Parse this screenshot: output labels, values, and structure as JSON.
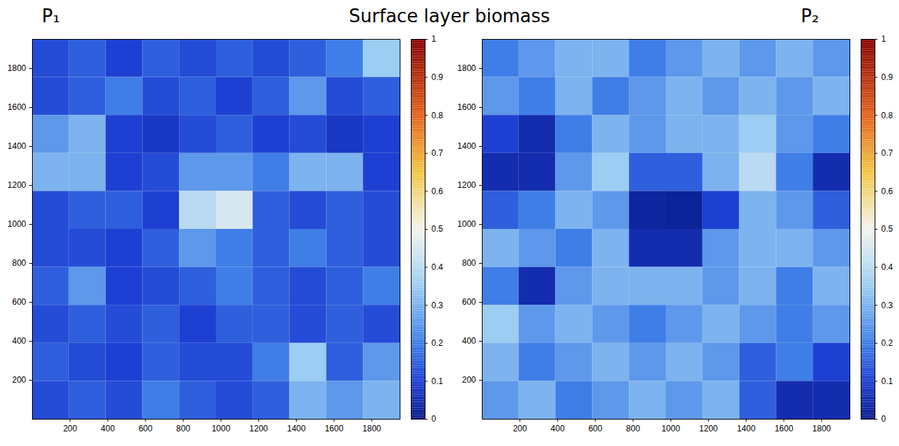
{
  "title": "Surface layer biomass",
  "chart_data": [
    {
      "type": "heatmap",
      "title": "P₁",
      "xlim": [
        0,
        1950
      ],
      "ylim": [
        0,
        1950
      ],
      "xticks": [
        200,
        400,
        600,
        800,
        1000,
        1200,
        1400,
        1600,
        1800
      ],
      "yticks": [
        200,
        400,
        600,
        800,
        1000,
        1200,
        1400,
        1600,
        1800
      ],
      "x_edges": [
        0,
        195,
        390,
        585,
        780,
        975,
        1170,
        1365,
        1560,
        1755,
        1950
      ],
      "y_edges": [
        1950,
        1755,
        1560,
        1365,
        1170,
        975,
        780,
        585,
        390,
        195,
        0
      ],
      "cells": [
        [
          0.12,
          0.15,
          0.1,
          0.15,
          0.12,
          0.15,
          0.12,
          0.15,
          0.2,
          0.35
        ],
        [
          0.12,
          0.15,
          0.2,
          0.12,
          0.15,
          0.1,
          0.15,
          0.25,
          0.12,
          0.15
        ],
        [
          0.25,
          0.3,
          0.1,
          0.08,
          0.12,
          0.15,
          0.1,
          0.12,
          0.08,
          0.1
        ],
        [
          0.3,
          0.3,
          0.1,
          0.12,
          0.25,
          0.25,
          0.2,
          0.3,
          0.3,
          0.1
        ],
        [
          0.12,
          0.15,
          0.15,
          0.1,
          0.4,
          0.45,
          0.15,
          0.12,
          0.15,
          0.12
        ],
        [
          0.12,
          0.12,
          0.1,
          0.15,
          0.25,
          0.2,
          0.15,
          0.2,
          0.15,
          0.12
        ],
        [
          0.15,
          0.25,
          0.1,
          0.12,
          0.15,
          0.2,
          0.15,
          0.12,
          0.15,
          0.2
        ],
        [
          0.12,
          0.15,
          0.12,
          0.15,
          0.1,
          0.15,
          0.15,
          0.12,
          0.15,
          0.12
        ],
        [
          0.15,
          0.12,
          0.1,
          0.15,
          0.12,
          0.12,
          0.2,
          0.35,
          0.15,
          0.25
        ],
        [
          0.12,
          0.15,
          0.12,
          0.2,
          0.15,
          0.12,
          0.15,
          0.3,
          0.25,
          0.3
        ]
      ],
      "colorbar_range": [
        0,
        1
      ],
      "colorbar_ticks": [
        0,
        0.1,
        0.2,
        0.3,
        0.4,
        0.5,
        0.6,
        0.7,
        0.8,
        0.9,
        1
      ]
    },
    {
      "type": "heatmap",
      "title": "P₂",
      "xlim": [
        0,
        1950
      ],
      "ylim": [
        0,
        1950
      ],
      "xticks": [
        200,
        400,
        600,
        800,
        1000,
        1200,
        1400,
        1600,
        1800
      ],
      "yticks": [
        200,
        400,
        600,
        800,
        1000,
        1200,
        1400,
        1600,
        1800
      ],
      "x_edges": [
        0,
        195,
        390,
        585,
        780,
        975,
        1170,
        1365,
        1560,
        1755,
        1950
      ],
      "y_edges": [
        1950,
        1755,
        1560,
        1365,
        1170,
        975,
        780,
        585,
        390,
        195,
        0
      ],
      "cells": [
        [
          0.2,
          0.25,
          0.3,
          0.3,
          0.2,
          0.25,
          0.3,
          0.25,
          0.3,
          0.25
        ],
        [
          0.25,
          0.2,
          0.3,
          0.2,
          0.25,
          0.3,
          0.25,
          0.3,
          0.25,
          0.3
        ],
        [
          0.1,
          0.05,
          0.2,
          0.3,
          0.25,
          0.3,
          0.3,
          0.35,
          0.25,
          0.2
        ],
        [
          0.05,
          0.05,
          0.25,
          0.35,
          0.15,
          0.15,
          0.3,
          0.4,
          0.2,
          0.05
        ],
        [
          0.15,
          0.2,
          0.3,
          0.25,
          0.03,
          0.02,
          0.1,
          0.3,
          0.25,
          0.15
        ],
        [
          0.3,
          0.25,
          0.2,
          0.3,
          0.05,
          0.05,
          0.25,
          0.3,
          0.3,
          0.25
        ],
        [
          0.2,
          0.05,
          0.25,
          0.3,
          0.3,
          0.3,
          0.25,
          0.3,
          0.2,
          0.3
        ],
        [
          0.35,
          0.25,
          0.3,
          0.25,
          0.2,
          0.25,
          0.3,
          0.25,
          0.2,
          0.25
        ],
        [
          0.3,
          0.2,
          0.25,
          0.3,
          0.25,
          0.3,
          0.25,
          0.15,
          0.2,
          0.1
        ],
        [
          0.25,
          0.3,
          0.2,
          0.25,
          0.3,
          0.25,
          0.3,
          0.15,
          0.05,
          0.05
        ]
      ],
      "colorbar_range": [
        0,
        1
      ],
      "colorbar_ticks": [
        0,
        0.1,
        0.2,
        0.3,
        0.4,
        0.5,
        0.6,
        0.7,
        0.8,
        0.9,
        1
      ]
    }
  ]
}
